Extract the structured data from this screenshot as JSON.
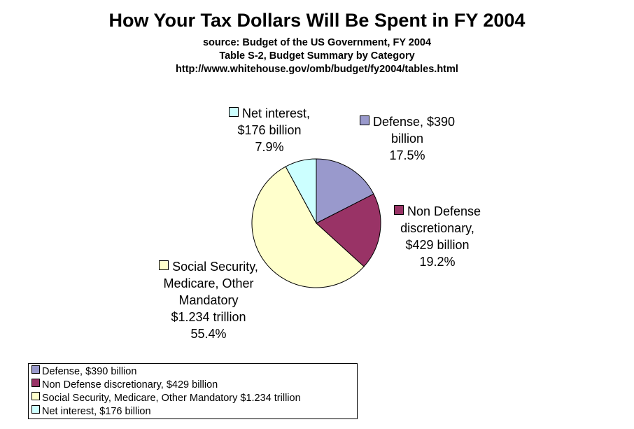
{
  "header": {
    "title": "How Your Tax Dollars Will Be Spent in FY 2004",
    "source": "source: Budget of the US Government, FY 2004",
    "table": "Table S-2, Budget Summary by Category",
    "url": "http://www.whitehouse.gov/omb/budget/fy2004/tables.html"
  },
  "labels": {
    "net_interest": [
      "Net interest,",
      "$176 billion",
      "7.9%"
    ],
    "defense": [
      "Defense, $390",
      "billion",
      "17.5%"
    ],
    "non_defense": [
      "Non Defense",
      "discretionary,",
      "$429 billion",
      "19.2%"
    ],
    "social_security": [
      "Social Security,",
      "Medicare, Other",
      "Mandatory",
      "$1.234 trillion",
      "55.4%"
    ]
  },
  "legend": [
    "Defense, $390 billion",
    "Non Defense discretionary, $429 billion",
    "Social Security, Medicare, Other Mandatory $1.234 trillion",
    "Net interest, $176 billion"
  ],
  "chart_data": {
    "type": "pie",
    "title": "How Your Tax Dollars Will Be Spent in FY 2004",
    "slices": [
      {
        "label": "Defense, $390 billion",
        "value": 390,
        "percent": 17.5,
        "color": "#9999CC"
      },
      {
        "label": "Non Defense discretionary, $429 billion",
        "value": 429,
        "percent": 19.2,
        "color": "#993366"
      },
      {
        "label": "Social Security, Medicare, Other Mandatory $1.234 trillion",
        "value": 1234,
        "percent": 55.4,
        "color": "#FFFFCC"
      },
      {
        "label": "Net interest, $176 billion",
        "value": 176,
        "percent": 7.9,
        "color": "#CCFFFF"
      }
    ],
    "legend_position": "bottom-left"
  }
}
